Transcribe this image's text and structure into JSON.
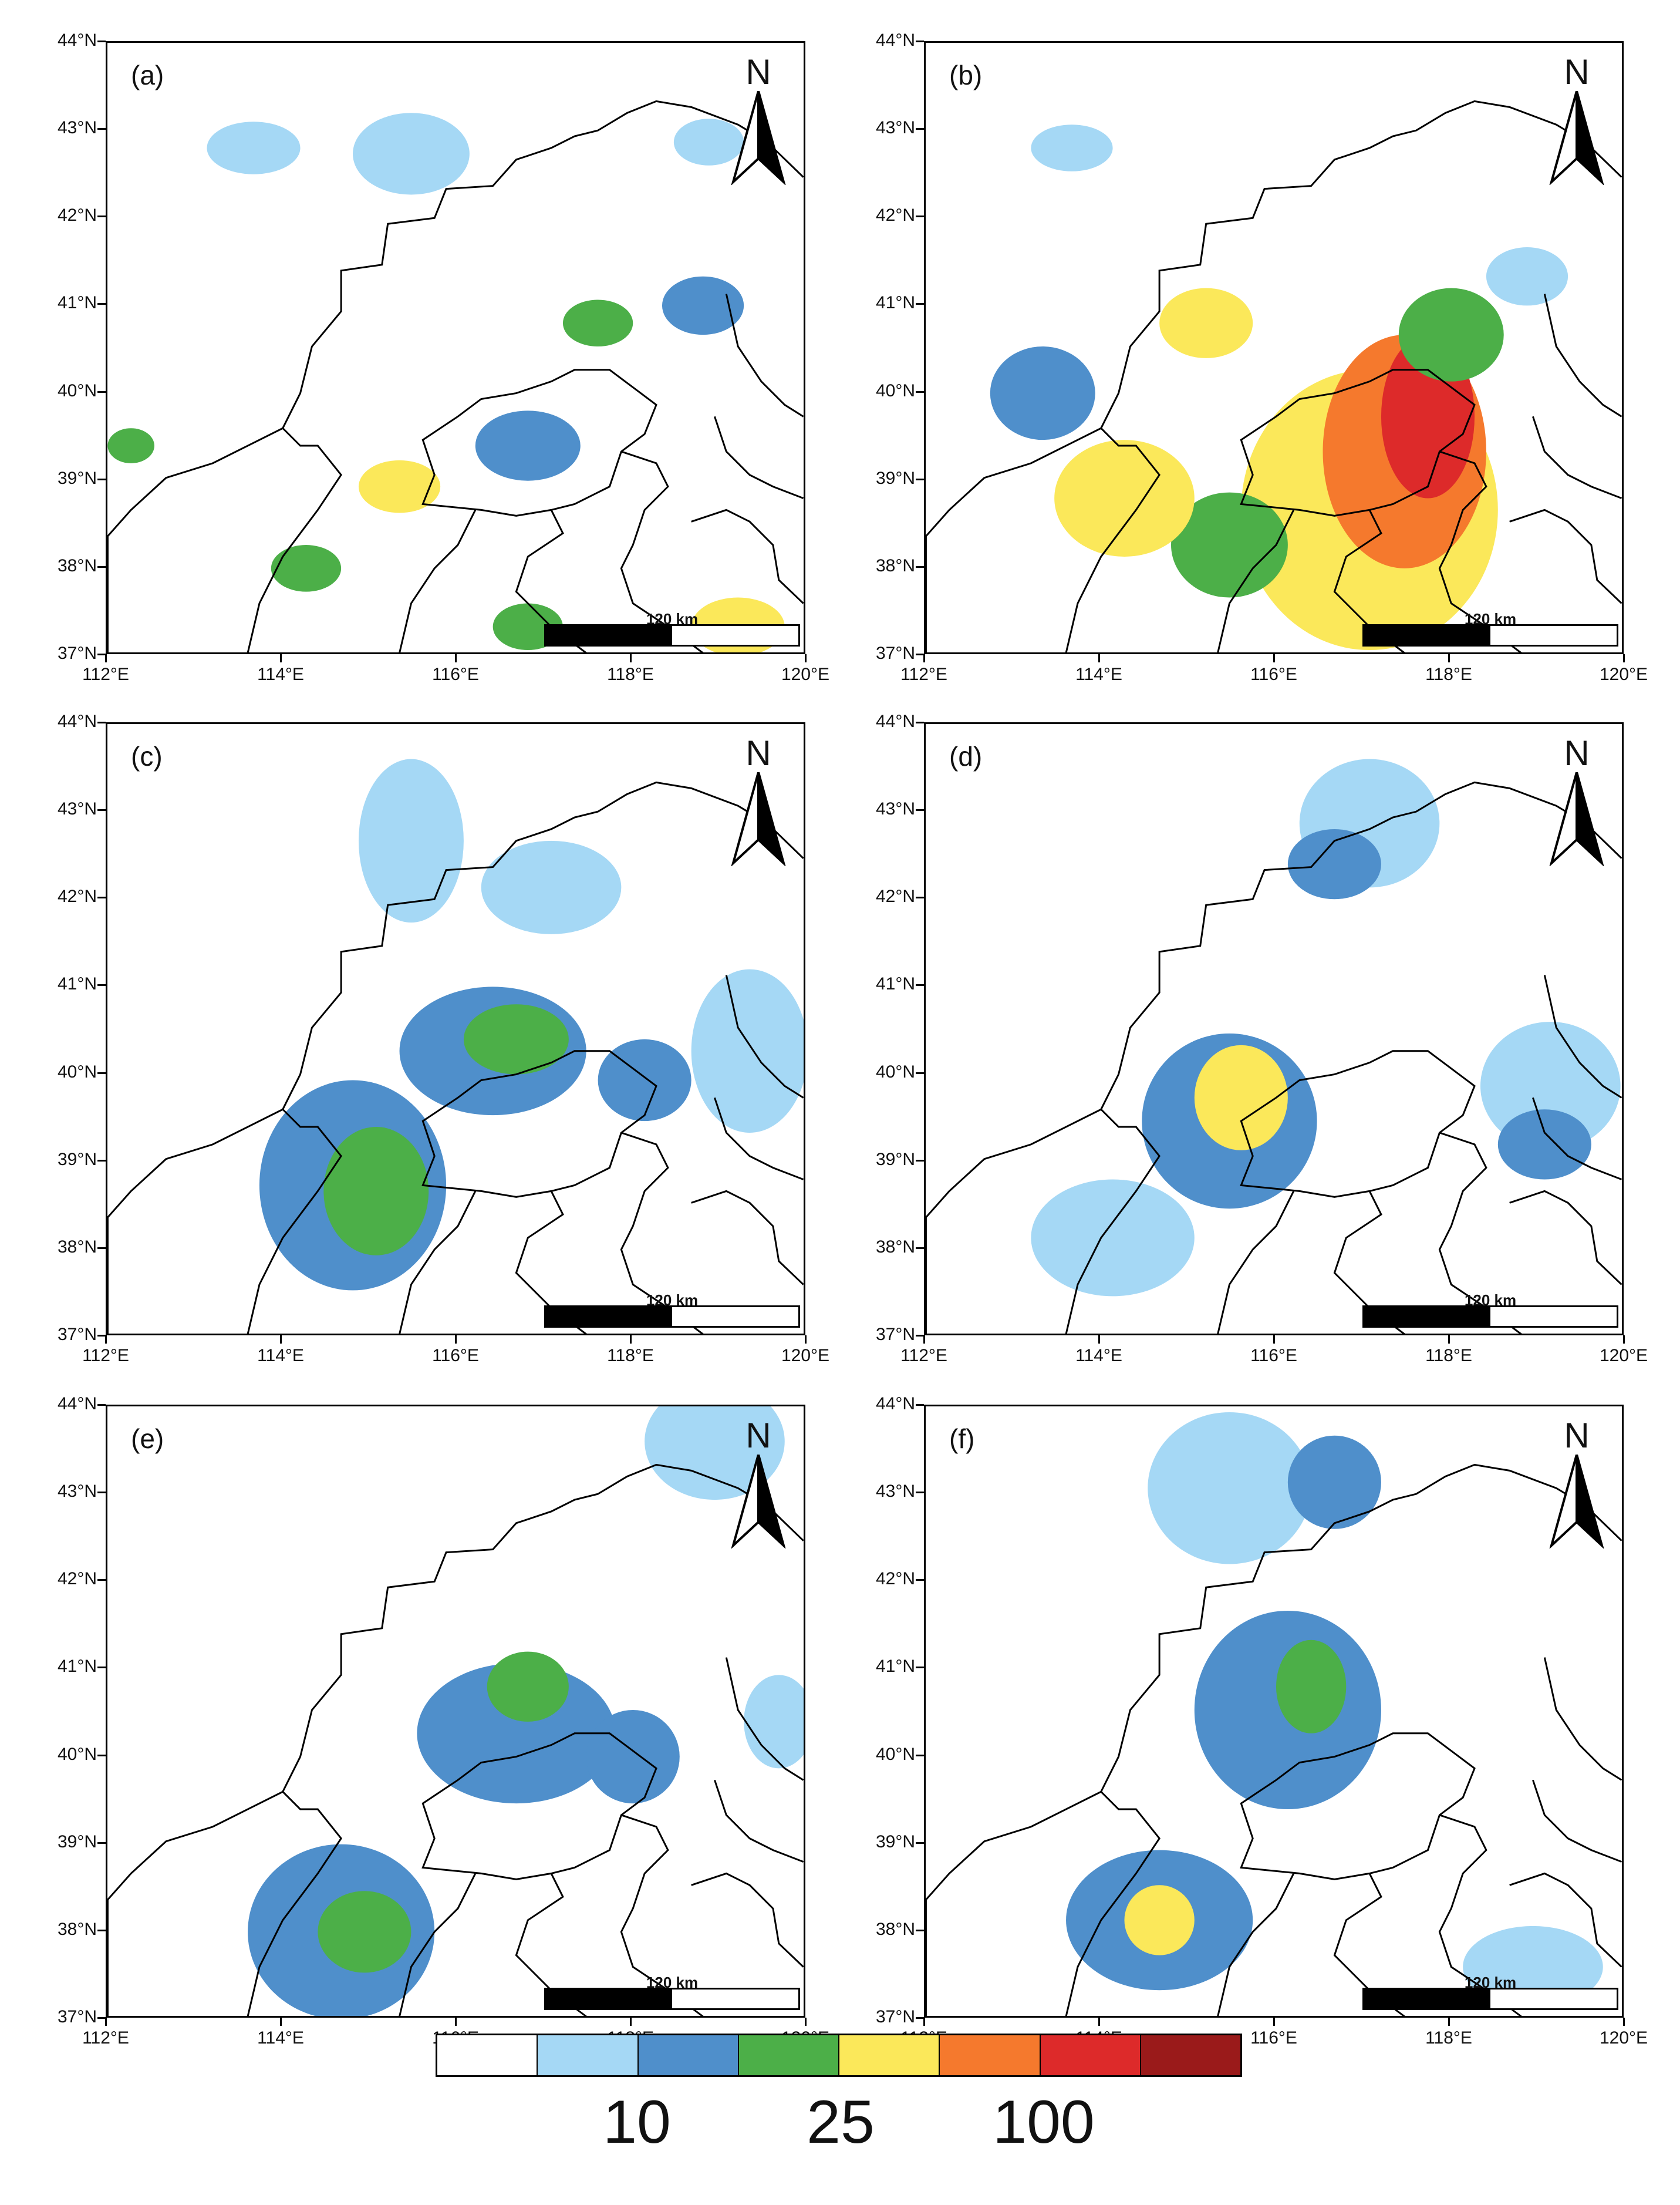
{
  "panels": [
    {
      "id": "a",
      "label": "(a)"
    },
    {
      "id": "b",
      "label": "(b)"
    },
    {
      "id": "c",
      "label": "(c)"
    },
    {
      "id": "d",
      "label": "(d)"
    },
    {
      "id": "e",
      "label": "(e)"
    },
    {
      "id": "f",
      "label": "(f)"
    }
  ],
  "north_label": "N",
  "scale_bar": "120 km",
  "lat_ticks": [
    "44°N",
    "43°N",
    "42°N",
    "41°N",
    "40°N",
    "39°N",
    "38°N",
    "37°N"
  ],
  "lon_ticks": [
    "112°E",
    "114°E",
    "116°E",
    "118°E",
    "120°E"
  ],
  "legend": {
    "colors": [
      "#ffffff",
      "#a5d8f5",
      "#4f8fcb",
      "#4caf48",
      "#fbe85a",
      "#f5792d",
      "#dd2a2a",
      "#9a1a1a"
    ],
    "labels": [
      "10",
      "25",
      "100"
    ]
  },
  "colors": {
    "coast_line": "#000000",
    "boundary_line": "#000000"
  }
}
